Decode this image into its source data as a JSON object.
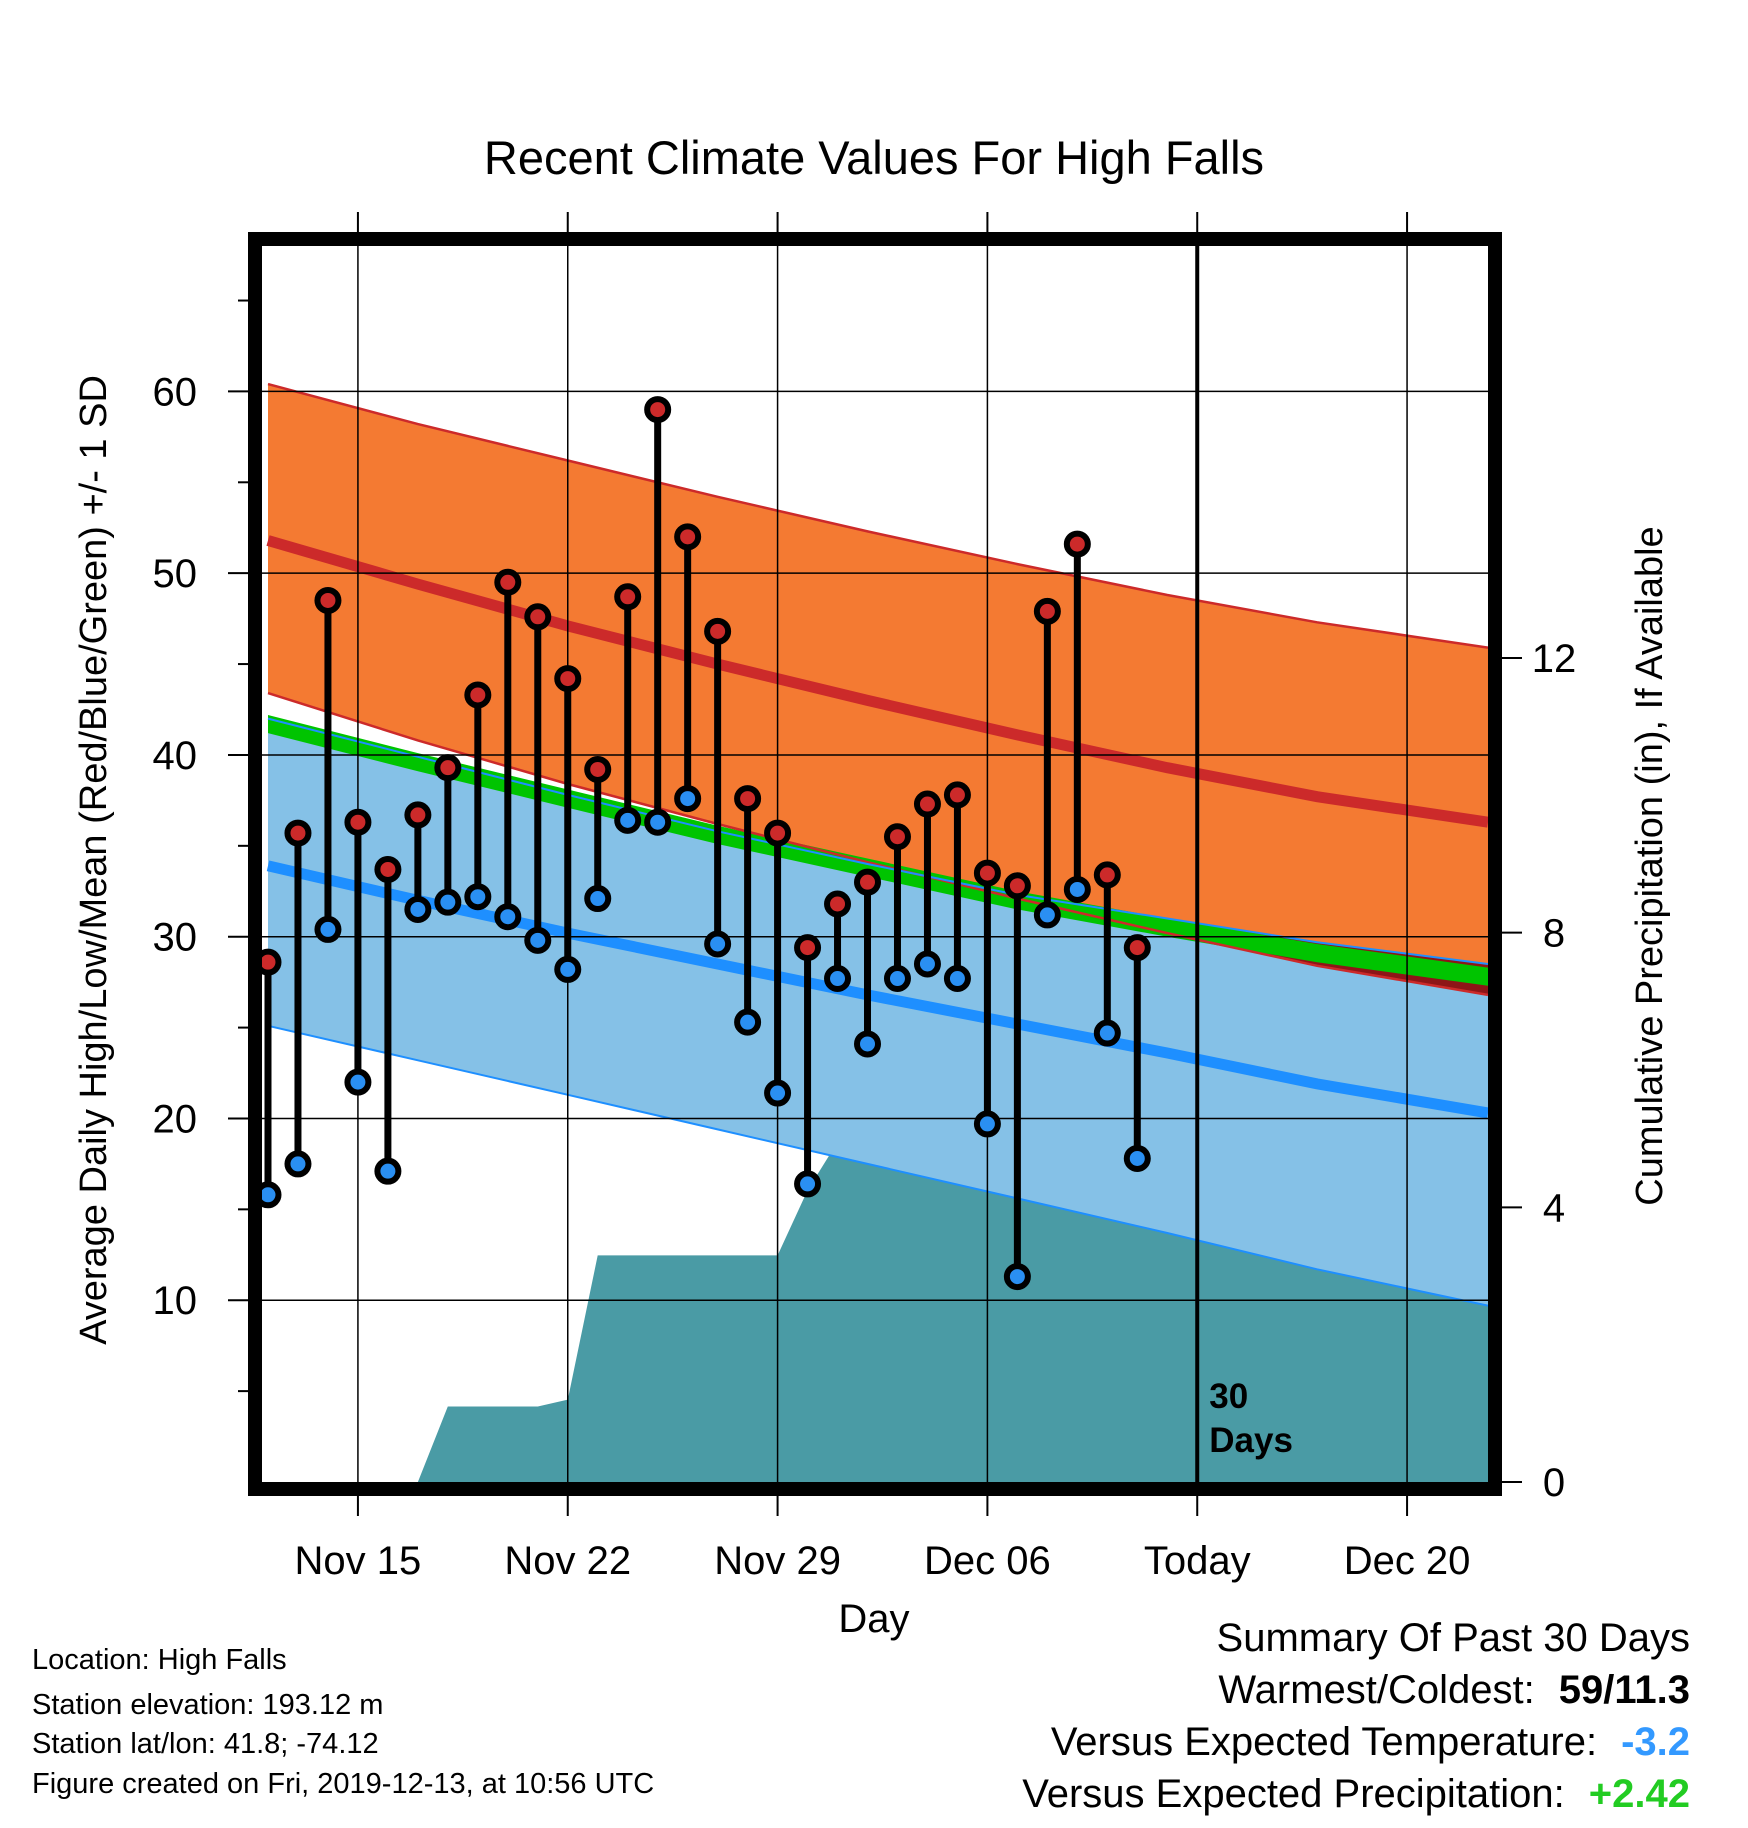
{
  "chart_data": {
    "type": "line",
    "title": "Recent Climate Values For High Falls",
    "xlabel": "Day",
    "ylabel": "Average Daily High/Low/Mean (Red/Blue/Green) +/- 1 SD",
    "y2label": "Cumulative Precipitation (in), If Available",
    "x_tick_labels": [
      "Nov 15",
      "Nov 22",
      "Nov 29",
      "Dec 06",
      "Today",
      "Dec 20"
    ],
    "x_ticks_day": [
      15,
      22,
      29,
      36,
      43,
      50
    ],
    "xlim_day": [
      11.8,
      52.7
    ],
    "ylim": [
      0,
      68
    ],
    "y_ticks": [
      10,
      20,
      30,
      40,
      50,
      60
    ],
    "y2lim": [
      0,
      18
    ],
    "y2_ticks": [
      0,
      4,
      8,
      12
    ],
    "grid": true,
    "today_day": 43,
    "today_label": [
      "30",
      "Days"
    ],
    "normals": {
      "x_day": [
        12,
        17,
        22,
        27,
        32,
        37,
        42,
        47,
        52.7
      ],
      "high_mean": [
        51.8,
        49.4,
        47.1,
        45.0,
        43.0,
        41.1,
        39.3,
        37.7,
        36.3
      ],
      "high_upper": [
        60.4,
        58.2,
        56.2,
        54.2,
        52.3,
        50.5,
        48.8,
        47.3,
        45.9
      ],
      "high_lower": [
        43.4,
        40.8,
        38.4,
        36.2,
        34.1,
        32.1,
        30.2,
        28.4,
        26.8
      ],
      "low_mean": [
        33.9,
        32.0,
        30.2,
        28.5,
        26.8,
        25.2,
        23.6,
        21.9,
        20.3
      ],
      "low_upper": [
        42.0,
        39.9,
        37.8,
        35.8,
        34.0,
        32.3,
        31.0,
        29.7,
        28.5
      ],
      "low_lower": [
        25.1,
        23.2,
        21.3,
        19.4,
        17.5,
        15.6,
        13.7,
        11.7,
        9.7
      ],
      "avg_mean": [
        41.7,
        39.6,
        37.6,
        35.6,
        33.8,
        32.0,
        30.5,
        29.1,
        27.8
      ],
      "avg_band_halfwidth": 0.5
    },
    "series": [
      {
        "name": "High",
        "x_day": [
          12,
          13,
          14,
          15,
          16,
          17,
          18,
          19,
          20,
          21,
          22,
          23,
          24,
          25,
          26,
          27,
          28,
          29,
          30,
          31,
          32,
          33,
          34,
          35,
          36,
          37,
          38,
          39,
          40,
          41,
          42
        ],
        "values": [
          28.6,
          35.7,
          48.5,
          36.3,
          33.7,
          36.7,
          39.3,
          43.3,
          49.5,
          47.6,
          44.2,
          39.2,
          48.7,
          59.0,
          52.0,
          46.8,
          37.6,
          35.7,
          29.4,
          31.8,
          33.0,
          35.5,
          37.3,
          37.8,
          33.5,
          32.8,
          47.9,
          51.6,
          33.4,
          29.4,
          null
        ]
      },
      {
        "name": "Low",
        "x_day": [
          12,
          13,
          14,
          15,
          16,
          17,
          18,
          19,
          20,
          21,
          22,
          23,
          24,
          25,
          26,
          27,
          28,
          29,
          30,
          31,
          32,
          33,
          34,
          35,
          36,
          37,
          38,
          39,
          40,
          41,
          42
        ],
        "values": [
          15.8,
          17.5,
          30.4,
          22.0,
          17.1,
          31.5,
          31.9,
          32.2,
          31.1,
          29.8,
          28.2,
          32.1,
          36.4,
          36.3,
          37.6,
          29.6,
          25.3,
          21.4,
          16.4,
          27.7,
          24.1,
          27.7,
          28.5,
          27.7,
          19.7,
          11.3,
          31.2,
          32.6,
          24.7,
          17.8,
          null
        ]
      },
      {
        "name": "Cumulative Precipitation",
        "x_day": [
          12,
          17,
          18,
          19,
          20,
          21,
          22,
          23,
          24,
          25,
          26,
          27,
          28,
          29,
          30,
          31,
          32,
          33,
          34,
          35,
          36,
          37,
          38,
          39,
          40,
          41,
          52.7
        ],
        "values": [
          0,
          0,
          1.1,
          1.1,
          1.1,
          1.1,
          1.2,
          3.3,
          3.3,
          3.3,
          3.3,
          3.3,
          3.3,
          3.3,
          4.25,
          4.95,
          5.05,
          5.05,
          5.05,
          5.05,
          5.07,
          5.1,
          5.85,
          6.1,
          6.15,
          6.15,
          6.15
        ]
      }
    ]
  },
  "info": {
    "location": "Location: High Falls",
    "elevation": "Station elevation: 193.12 m",
    "latlon": "Station lat/lon: 41.8; -74.12",
    "created": "Figure created on Fri, 2019-12-13, at 10:56 UTC"
  },
  "summary": {
    "title": "Summary Of Past 30 Days",
    "warm_cold_label": "Warmest/Coldest:",
    "warm_cold_value": "59/11.3",
    "temp_label": "Versus Expected Temperature:",
    "temp_value": "-3.2",
    "temp_color": "#3399ff",
    "precip_label": "Versus Expected Precipitation:",
    "precip_value": "+2.42",
    "precip_color": "#22cc22"
  },
  "colors": {
    "high_band": "#f47a32",
    "high_line": "#cc2a2a",
    "overlap_band": "#8e1517",
    "avg_band": "#00c400",
    "low_band": "#85c1e7",
    "low_line": "#1e8fff",
    "precip_fill": "#4a9ba5",
    "high_marker": "#cc2a2a",
    "low_marker": "#2a8ff2"
  }
}
